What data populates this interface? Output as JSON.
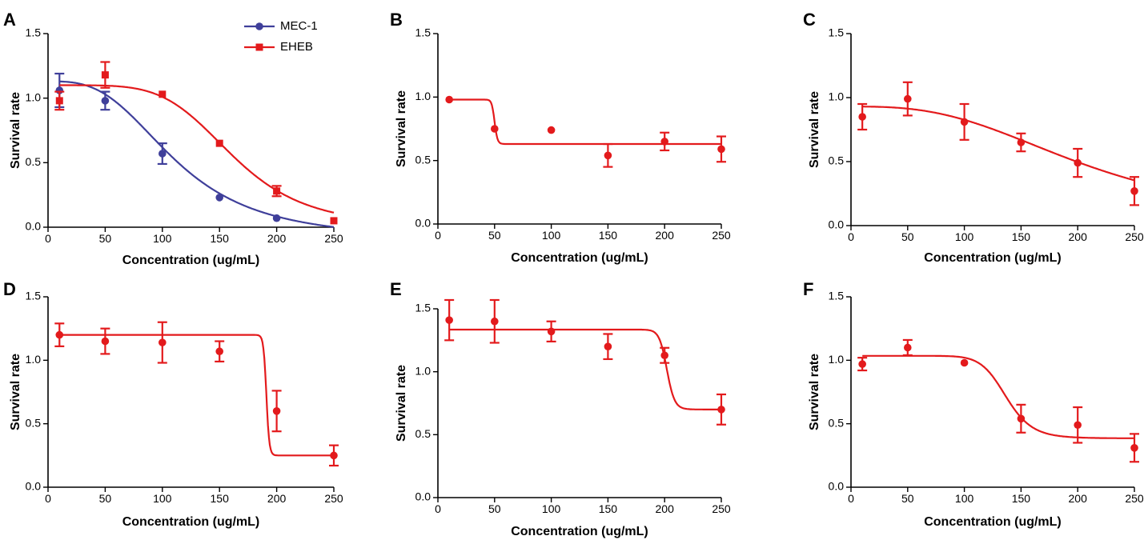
{
  "colors": {
    "red": "#e31a1c",
    "blue": "#3f3f9a",
    "axis": "#000000"
  },
  "chart_data": [
    {
      "panel": "A",
      "type": "scatter",
      "xlabel": "Concentration (ug/mL)",
      "ylabel": "Survival rate",
      "xlim": [
        0,
        250
      ],
      "ylim": [
        0,
        1.5
      ],
      "xticks": [
        0,
        50,
        100,
        150,
        200,
        250
      ],
      "yticks": [
        0.0,
        0.5,
        1.0,
        1.5
      ],
      "ytick_labels": [
        "0.0",
        "0.5",
        "1.0",
        "1.5"
      ],
      "legend": {
        "placement": "top-center"
      },
      "series": [
        {
          "name": "MEC-1",
          "color": "#3f3f9a",
          "marker": "circle",
          "x": [
            10,
            50,
            100,
            150,
            200
          ],
          "y": [
            1.06,
            0.98,
            0.57,
            0.23,
            0.07
          ],
          "err": [
            0.13,
            0.07,
            0.08,
            0.0,
            0.0
          ],
          "curve": {
            "model": "sigmoid",
            "top": 1.13,
            "bottom": -0.1,
            "x50": 112,
            "hill": 3.0
          }
        },
        {
          "name": "EHEB",
          "color": "#e31a1c",
          "marker": "square",
          "x": [
            10,
            50,
            100,
            150,
            200,
            250
          ],
          "y": [
            0.98,
            1.18,
            1.03,
            0.65,
            0.28,
            0.05
          ],
          "err": [
            0.07,
            0.1,
            0.0,
            0.0,
            0.04,
            0.0
          ],
          "curve": {
            "model": "sigmoid",
            "top": 1.1,
            "bottom": 0.0,
            "x50": 162,
            "hill": 5.0
          }
        }
      ]
    },
    {
      "panel": "B",
      "type": "scatter",
      "xlabel": "Concentration (ug/mL)",
      "ylabel": "Survival rate",
      "xlim": [
        0,
        250
      ],
      "ylim": [
        0,
        1.5
      ],
      "xticks": [
        0,
        50,
        100,
        150,
        200,
        250
      ],
      "yticks": [
        0.0,
        0.5,
        1.0,
        1.5
      ],
      "ytick_labels": [
        "0.0",
        "0.5",
        "1.0",
        "1.5"
      ],
      "series": [
        {
          "name": "",
          "color": "#e31a1c",
          "marker": "circle",
          "x": [
            10,
            50,
            100,
            150,
            200,
            250
          ],
          "y": [
            0.98,
            0.75,
            0.74,
            0.54,
            0.65,
            0.59
          ],
          "err": [
            0.0,
            0.0,
            0.0,
            0.09,
            0.07,
            0.1
          ],
          "curve": {
            "model": "sigmoid",
            "top": 0.98,
            "bottom": 0.63,
            "x50": 50,
            "hill": 40
          }
        }
      ]
    },
    {
      "panel": "C",
      "type": "scatter",
      "xlabel": "Concentration (ug/mL)",
      "ylabel": "Survival rate",
      "xlim": [
        0,
        250
      ],
      "ylim": [
        0,
        1.5
      ],
      "xticks": [
        0,
        50,
        100,
        150,
        200,
        250
      ],
      "yticks": [
        0.0,
        0.5,
        1.0,
        1.5
      ],
      "ytick_labels": [
        "0.0",
        "0.5",
        "1.0",
        "1.5"
      ],
      "series": [
        {
          "name": "",
          "color": "#e31a1c",
          "marker": "circle",
          "x": [
            10,
            50,
            100,
            150,
            200,
            250
          ],
          "y": [
            0.85,
            0.99,
            0.81,
            0.65,
            0.49,
            0.27
          ],
          "err": [
            0.1,
            0.13,
            0.14,
            0.07,
            0.11,
            0.11
          ],
          "curve": {
            "model": "sigmoid",
            "top": 0.93,
            "bottom": 0.0,
            "x50": 210,
            "hill": 2.8
          }
        }
      ]
    },
    {
      "panel": "D",
      "type": "scatter",
      "xlabel": "Concentration (ug/mL)",
      "ylabel": "Survival rate",
      "xlim": [
        0,
        250
      ],
      "ylim": [
        0,
        1.5
      ],
      "xticks": [
        0,
        50,
        100,
        150,
        200,
        250
      ],
      "yticks": [
        0.0,
        0.5,
        1.0,
        1.5
      ],
      "ytick_labels": [
        "0.0",
        "0.5",
        "1.0",
        "1.5"
      ],
      "series": [
        {
          "name": "",
          "color": "#e31a1c",
          "marker": "circle",
          "x": [
            10,
            50,
            100,
            150,
            200,
            250
          ],
          "y": [
            1.2,
            1.15,
            1.14,
            1.07,
            0.6,
            0.25
          ],
          "err": [
            0.09,
            0.1,
            0.16,
            0.08,
            0.16,
            0.08
          ],
          "curve": {
            "model": "sigmoid",
            "top": 1.2,
            "bottom": 0.25,
            "x50": 191,
            "hill": 150
          }
        }
      ]
    },
    {
      "panel": "E",
      "type": "scatter",
      "xlabel": "Concentration (ug/mL)",
      "ylabel": "Survival rate",
      "xlim": [
        0,
        250
      ],
      "ylim": [
        0,
        1.5
      ],
      "xticks": [
        0,
        50,
        100,
        150,
        200,
        250
      ],
      "yticks": [
        0.0,
        0.5,
        1.0,
        1.5
      ],
      "ytick_labels": [
        "0.0",
        "0.5",
        "1.0",
        "1.5"
      ],
      "series": [
        {
          "name": "",
          "color": "#e31a1c",
          "marker": "circle",
          "x": [
            10,
            50,
            100,
            150,
            200,
            250
          ],
          "y": [
            1.41,
            1.4,
            1.32,
            1.2,
            1.13,
            0.7
          ],
          "err": [
            0.16,
            0.17,
            0.08,
            0.1,
            0.06,
            0.12
          ],
          "curve": {
            "model": "sigmoid",
            "top": 1.335,
            "bottom": 0.7,
            "x50": 202,
            "hill": 60
          }
        }
      ]
    },
    {
      "panel": "F",
      "type": "scatter",
      "xlabel": "Concentration (ug/mL)",
      "ylabel": "Survival rate",
      "xlim": [
        0,
        250
      ],
      "ylim": [
        0,
        1.5
      ],
      "xticks": [
        0,
        50,
        100,
        150,
        200,
        250
      ],
      "yticks": [
        0.0,
        0.5,
        1.0,
        1.5
      ],
      "ytick_labels": [
        "0.0",
        "0.5",
        "1.0",
        "1.5"
      ],
      "series": [
        {
          "name": "",
          "color": "#e31a1c",
          "marker": "circle",
          "x": [
            10,
            50,
            100,
            150,
            200,
            250
          ],
          "y": [
            0.97,
            1.1,
            0.98,
            0.54,
            0.49,
            0.31
          ],
          "err": [
            0.05,
            0.06,
            0.0,
            0.11,
            0.14,
            0.11
          ],
          "curve": {
            "model": "sigmoid",
            "top": 1.035,
            "bottom": 0.385,
            "x50": 137,
            "hill": 12
          }
        }
      ]
    }
  ]
}
